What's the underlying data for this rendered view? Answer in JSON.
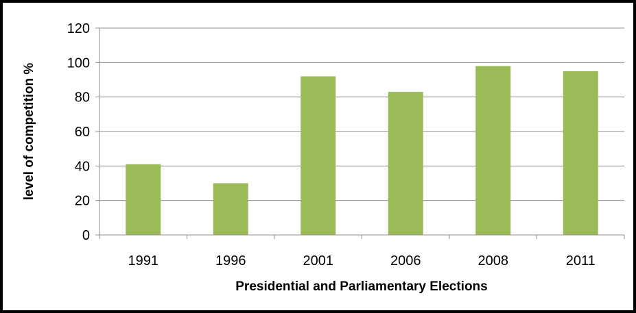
{
  "chart_data": {
    "type": "bar",
    "title": "",
    "xlabel": "Presidential and Parliamentary Elections",
    "ylabel": "level of competition %",
    "categories": [
      "1991",
      "1996",
      "2001",
      "2006",
      "2008",
      "2011"
    ],
    "series": [
      {
        "values": [
          41,
          30,
          92,
          83,
          98,
          95
        ]
      }
    ],
    "ylim": [
      0,
      120
    ],
    "yticks": [
      0,
      20,
      40,
      60,
      80,
      100,
      120
    ],
    "grid": true,
    "legend": "none",
    "colors": {
      "bar": "#9BBB59",
      "grid": "#8C8C8C",
      "axis": "#8C8C8C",
      "frame": "#000000"
    }
  }
}
